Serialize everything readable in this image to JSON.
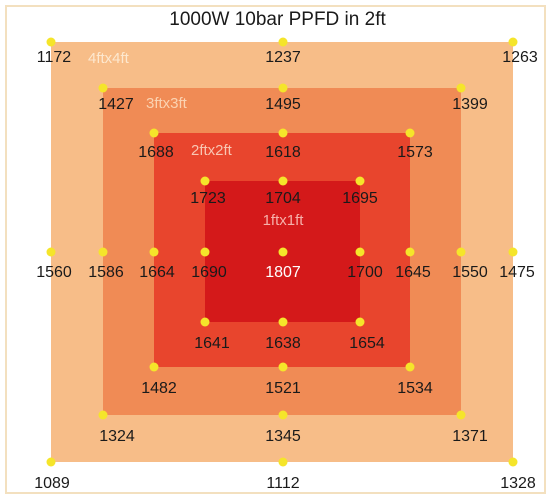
{
  "title": "1000W 10bar PPFD in 2ft",
  "colors": {
    "zone_4ft": "#f7bd88",
    "zone_3ft": "#f08b55",
    "zone_2ft": "#e8452d",
    "zone_1ft": "#d4191a",
    "point": "#f5e52a",
    "frame": "#f3e0bf"
  },
  "zones": [
    {
      "label": "4ftx4ft"
    },
    {
      "label": "3ftx3ft"
    },
    {
      "label": "2ftx2ft"
    },
    {
      "label": "1ftx1ft"
    }
  ],
  "readings": {
    "outer_top": [
      "1172",
      "1237",
      "1263"
    ],
    "outer_mid": [
      "1560",
      "1475"
    ],
    "outer_bottom": [
      "1089",
      "1112",
      "1328"
    ],
    "ring3_top": [
      "1427",
      "1495",
      "1399"
    ],
    "ring3_mid": [
      "1586",
      "1550"
    ],
    "ring3_bottom": [
      "1324",
      "1345",
      "1371"
    ],
    "ring2_top": [
      "1688",
      "1618",
      "1573"
    ],
    "ring2_mid": [
      "1664",
      "1645"
    ],
    "ring2_bottom": [
      "1482",
      "1521",
      "1534"
    ],
    "ring1_top": [
      "1723",
      "1704",
      "1695"
    ],
    "ring1_mid": [
      "1690",
      "1700"
    ],
    "ring1_bottom": [
      "1641",
      "1638",
      "1654"
    ],
    "center": "1807"
  }
}
